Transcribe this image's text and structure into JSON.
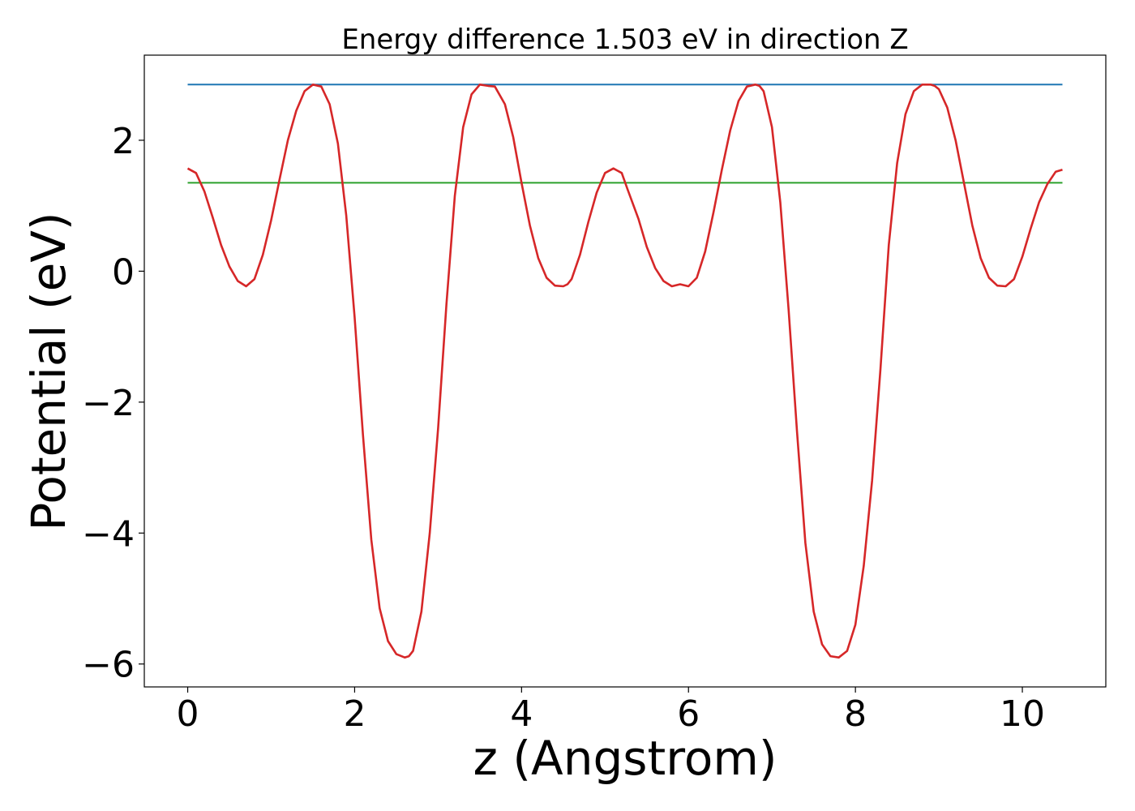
{
  "chart_data": {
    "type": "line",
    "title": "Energy difference 1.503 eV in direction Z",
    "xlabel": "z (Angstrom)",
    "ylabel": "Potential (eV)",
    "xlim": [
      -0.52,
      11.0
    ],
    "ylim": [
      -6.35,
      3.3
    ],
    "xticks": [
      0,
      2,
      4,
      6,
      8,
      10
    ],
    "xtick_labels": [
      "0",
      "2",
      "4",
      "6",
      "8",
      "10"
    ],
    "yticks": [
      -6,
      -4,
      -2,
      0,
      2
    ],
    "ytick_labels": [
      "−6",
      "−4",
      "−2",
      "0",
      "2"
    ],
    "grid": false,
    "colors": {
      "potential": "#d62728",
      "vacuum_level": "#1f77b4",
      "reference_level": "#2ca02c"
    },
    "series": [
      {
        "key": "potential",
        "x": [
          0.0,
          0.1,
          0.2,
          0.3,
          0.4,
          0.5,
          0.6,
          0.7,
          0.8,
          0.9,
          1.0,
          1.1,
          1.2,
          1.3,
          1.4,
          1.5,
          1.6,
          1.7,
          1.8,
          1.9,
          2.0,
          2.1,
          2.2,
          2.3,
          2.4,
          2.5,
          2.6,
          2.65,
          2.7,
          2.8,
          2.9,
          3.0,
          3.1,
          3.2,
          3.3,
          3.4,
          3.5,
          3.6,
          3.68,
          3.8,
          3.9,
          4.0,
          4.1,
          4.2,
          4.3,
          4.4,
          4.5,
          4.55,
          4.6,
          4.7,
          4.8,
          4.9,
          5.0,
          5.1,
          5.2,
          5.27,
          5.4,
          5.5,
          5.6,
          5.7,
          5.8,
          5.9,
          6.0,
          6.1,
          6.2,
          6.3,
          6.4,
          6.5,
          6.6,
          6.7,
          6.8,
          6.85,
          6.9,
          7.0,
          7.1,
          7.2,
          7.3,
          7.4,
          7.5,
          7.6,
          7.7,
          7.8,
          7.9,
          8.0,
          8.1,
          8.2,
          8.3,
          8.4,
          8.5,
          8.6,
          8.7,
          8.8,
          8.9,
          8.95,
          9.0,
          9.1,
          9.2,
          9.3,
          9.4,
          9.5,
          9.6,
          9.7,
          9.8,
          9.9,
          10.0,
          10.1,
          10.2,
          10.3,
          10.4,
          10.48
        ],
        "y": [
          1.57,
          1.5,
          1.22,
          0.82,
          0.4,
          0.07,
          -0.15,
          -0.23,
          -0.12,
          0.25,
          0.78,
          1.4,
          2.0,
          2.45,
          2.75,
          2.85,
          2.82,
          2.55,
          1.95,
          0.85,
          -0.7,
          -2.5,
          -4.1,
          -5.15,
          -5.65,
          -5.85,
          -5.9,
          -5.88,
          -5.8,
          -5.2,
          -4.0,
          -2.4,
          -0.5,
          1.15,
          2.2,
          2.7,
          2.85,
          2.83,
          2.82,
          2.55,
          2.05,
          1.35,
          0.7,
          0.2,
          -0.1,
          -0.22,
          -0.23,
          -0.2,
          -0.12,
          0.25,
          0.75,
          1.2,
          1.5,
          1.57,
          1.5,
          1.25,
          0.8,
          0.37,
          0.05,
          -0.15,
          -0.23,
          -0.2,
          -0.23,
          -0.1,
          0.3,
          0.9,
          1.55,
          2.15,
          2.6,
          2.82,
          2.85,
          2.83,
          2.75,
          2.2,
          1.05,
          -0.6,
          -2.45,
          -4.15,
          -5.2,
          -5.7,
          -5.88,
          -5.9,
          -5.8,
          -5.4,
          -4.5,
          -3.2,
          -1.5,
          0.4,
          1.65,
          2.4,
          2.75,
          2.85,
          2.85,
          2.83,
          2.78,
          2.5,
          2.0,
          1.35,
          0.7,
          0.2,
          -0.1,
          -0.22,
          -0.23,
          -0.12,
          0.22,
          0.65,
          1.05,
          1.33,
          1.52,
          1.55
        ]
      },
      {
        "key": "vacuum_level",
        "x": [
          0.0,
          10.48
        ],
        "y": [
          2.85,
          2.85
        ]
      },
      {
        "key": "reference_level",
        "x": [
          0.0,
          10.48
        ],
        "y": [
          1.35,
          1.35
        ]
      }
    ]
  }
}
